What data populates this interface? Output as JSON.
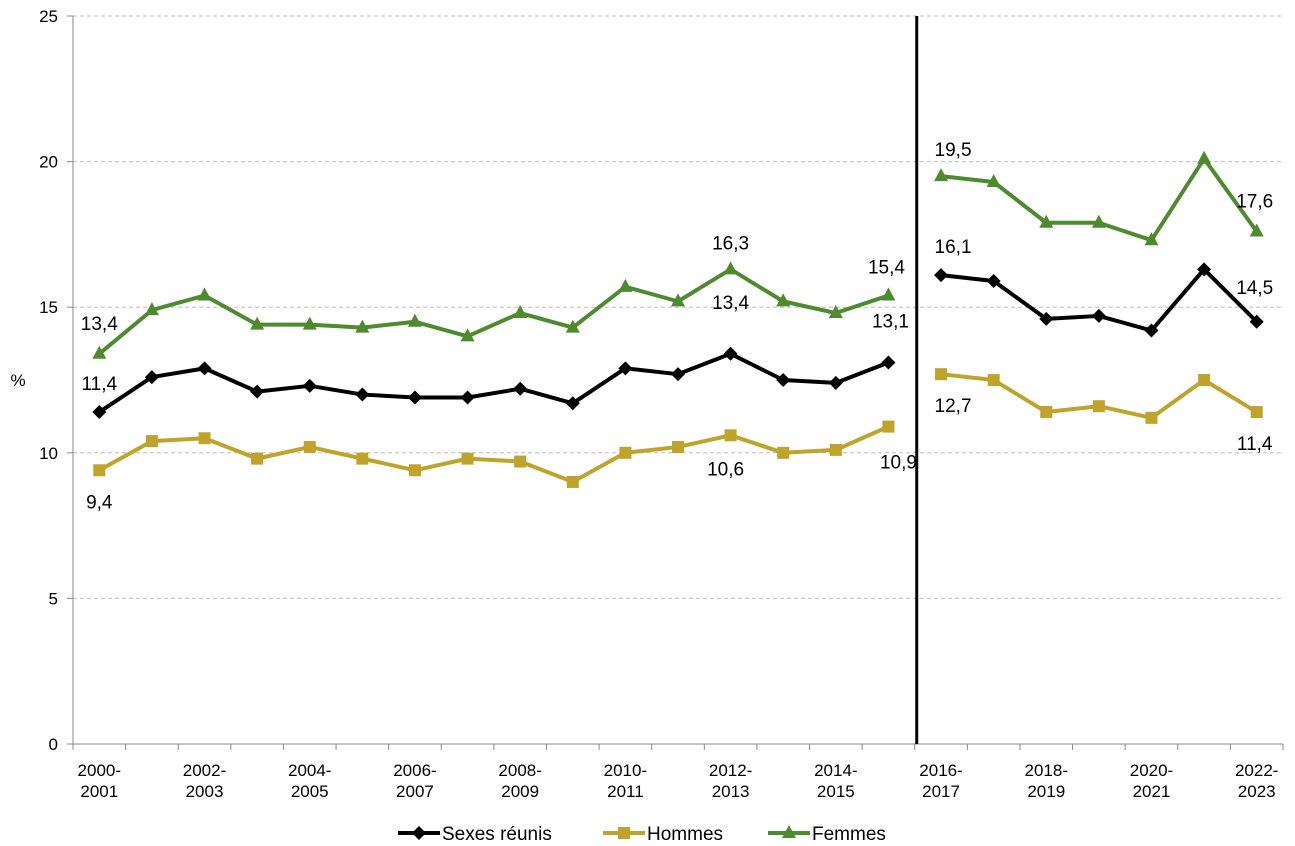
{
  "chart_data": {
    "type": "line",
    "ylabel": "%",
    "ylim": [
      0,
      25
    ],
    "yticks": [
      "0",
      "5",
      "10",
      "15",
      "20",
      "25"
    ],
    "grid": "horizontal dashed",
    "legend_position": "bottom",
    "x": [
      "2000-2001",
      "2001-2002",
      "2002-2003",
      "2003-2004",
      "2004-2005",
      "2005-2006",
      "2006-2007",
      "2007-2008",
      "2008-2009",
      "2009-2010",
      "2010-2011",
      "2011-2012",
      "2012-2013",
      "2013-2014",
      "2014-2015",
      "2015-2016",
      "2016-2017",
      "2017-2018",
      "2018-2019",
      "2019-2020",
      "2020-2021",
      "2021-2022",
      "2022-2023"
    ],
    "x_tick_labels": [
      {
        "top": "2000-",
        "bottom": "2001"
      },
      {
        "top": "2002-",
        "bottom": "2003"
      },
      {
        "top": "2004-",
        "bottom": "2005"
      },
      {
        "top": "2006-",
        "bottom": "2007"
      },
      {
        "top": "2008-",
        "bottom": "2009"
      },
      {
        "top": "2010-",
        "bottom": "2011"
      },
      {
        "top": "2012-",
        "bottom": "2013"
      },
      {
        "top": "2014-",
        "bottom": "2015"
      },
      {
        "top": "2016-",
        "bottom": "2017"
      },
      {
        "top": "2018-",
        "bottom": "2019"
      },
      {
        "top": "2020-",
        "bottom": "2021"
      },
      {
        "top": "2022-",
        "bottom": "2023"
      }
    ],
    "break_after_index": 15,
    "series": [
      {
        "name": "Sexes réunis",
        "color": "#000000",
        "marker": "diamond",
        "values": [
          11.4,
          12.6,
          12.9,
          12.1,
          12.3,
          12.0,
          11.9,
          11.9,
          12.2,
          11.7,
          12.9,
          12.7,
          13.4,
          12.5,
          12.4,
          13.1,
          16.1,
          15.9,
          14.6,
          14.7,
          14.2,
          16.3,
          14.5
        ],
        "labels": [
          {
            "index": 0,
            "text": "11,4"
          },
          {
            "index": 12,
            "text": "13,4"
          },
          {
            "index": 15,
            "text": "13,1"
          },
          {
            "index": 16,
            "text": "16,1"
          },
          {
            "index": 22,
            "text": "14,5"
          }
        ]
      },
      {
        "name": "Hommes",
        "color": "#BFA32A",
        "marker": "square",
        "values": [
          9.4,
          10.4,
          10.5,
          9.8,
          10.2,
          9.8,
          9.4,
          9.8,
          9.7,
          9.0,
          10.0,
          10.2,
          10.6,
          10.0,
          10.1,
          10.9,
          12.7,
          12.5,
          11.4,
          11.6,
          11.2,
          12.5,
          11.4
        ],
        "labels": [
          {
            "index": 0,
            "text": "9,4"
          },
          {
            "index": 12,
            "text": "10,6"
          },
          {
            "index": 15,
            "text": "10,9"
          },
          {
            "index": 16,
            "text": "12,7"
          },
          {
            "index": 22,
            "text": "11,4"
          }
        ]
      },
      {
        "name": "Femmes",
        "color": "#4E8A2E",
        "marker": "triangle",
        "values": [
          13.4,
          14.9,
          15.4,
          14.4,
          14.4,
          14.3,
          14.5,
          14.0,
          14.8,
          14.3,
          15.7,
          15.2,
          16.3,
          15.2,
          14.8,
          15.4,
          19.5,
          19.3,
          17.9,
          17.9,
          17.3,
          20.1,
          17.6
        ],
        "labels": [
          {
            "index": 0,
            "text": "13,4"
          },
          {
            "index": 12,
            "text": "16,3"
          },
          {
            "index": 15,
            "text": "15,4"
          },
          {
            "index": 16,
            "text": "19,5"
          },
          {
            "index": 22,
            "text": "17,6"
          }
        ]
      }
    ]
  }
}
